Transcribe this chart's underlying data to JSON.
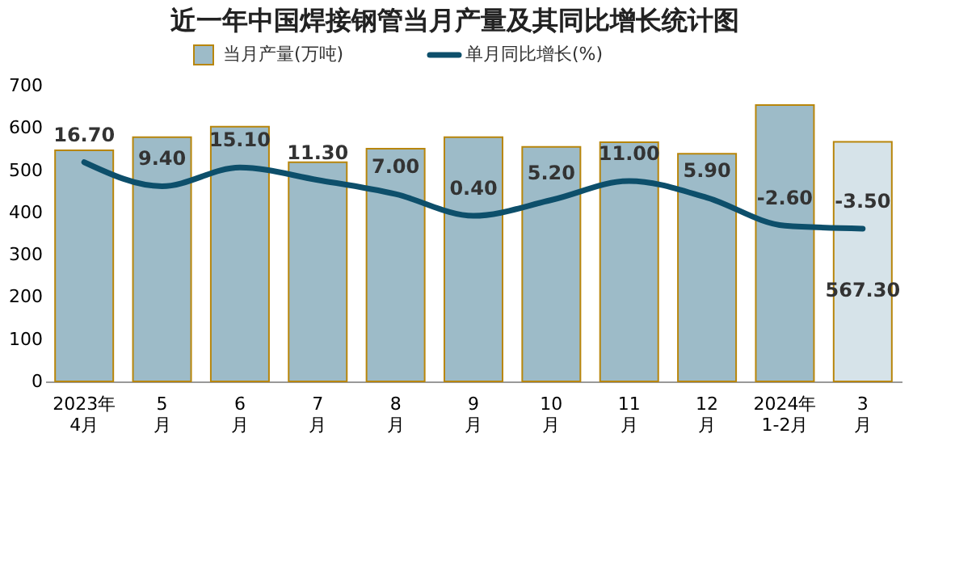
{
  "chart_data": {
    "type": "bar",
    "title": "近一年中国焊接钢管当月产量及其同比增长统计图",
    "categories": [
      "2023年\n4月",
      "5\n月",
      "6\n月",
      "7\n月",
      "8\n月",
      "9\n月",
      "10\n月",
      "11\n月",
      "12\n月",
      "2024年\n1-2月",
      "3\n月"
    ],
    "series": [
      {
        "name": "当月产量(万吨)",
        "color": "#9dbbc8",
        "colors": [
          "#9dbbc8",
          "#9dbbc8",
          "#9dbbc8",
          "#9dbbc8",
          "#9dbbc8",
          "#9dbbc8",
          "#9dbbc8",
          "#9dbbc8",
          "#9dbbc8",
          "#9dbbc8",
          "#d6e3e9"
        ],
        "values": [
          547,
          578,
          603,
          519,
          551,
          578,
          555,
          566,
          539,
          654,
          567.3
        ],
        "value_labels": [
          null,
          null,
          null,
          null,
          null,
          null,
          null,
          null,
          null,
          null,
          "567.30"
        ]
      },
      {
        "name": "单月同比增长(%)",
        "type": "line",
        "axis": "y2",
        "color": "#0d4f6b",
        "values": [
          16.7,
          9.4,
          15.1,
          11.3,
          7.0,
          0.4,
          5.2,
          11.0,
          5.9,
          -2.6,
          -3.5
        ],
        "value_labels": [
          "16.70",
          "9.40",
          "15.10",
          "11.30",
          "7.00",
          "0.40",
          "5.20",
          "11.00",
          "5.90",
          "-2.60",
          "-3.50"
        ]
      }
    ],
    "ylim": [
      0,
      700
    ],
    "yticks": [
      0,
      100,
      200,
      300,
      400,
      500,
      600,
      700
    ],
    "grid": false,
    "legend": "top",
    "marker": "none",
    "line_style": "solid"
  }
}
